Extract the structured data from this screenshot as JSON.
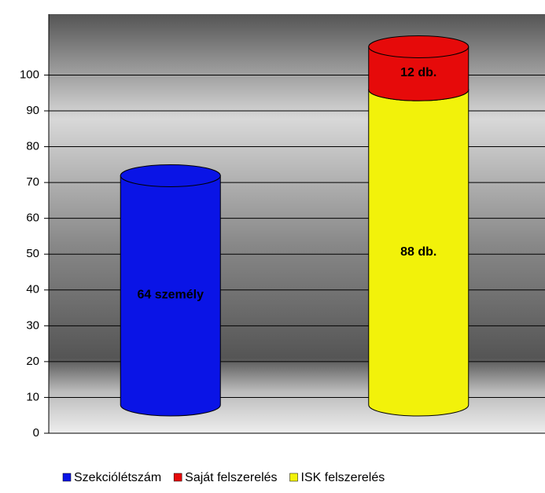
{
  "chart_data": {
    "type": "bar3d-stacked",
    "categories": [
      null,
      null
    ],
    "series": [
      {
        "name": "Szekciólétszám",
        "color": "#0a14e6",
        "values": [
          64,
          null
        ],
        "value_labels": [
          "64 személy",
          null
        ]
      },
      {
        "name": "Saját felszerelés",
        "color": "#e60a0a",
        "values": [
          null,
          12
        ],
        "value_labels": [
          null,
          "12 db."
        ]
      },
      {
        "name": "ISK felszerelés",
        "color": "#f2f20a",
        "values": [
          null,
          88
        ],
        "value_labels": [
          null,
          "88 db."
        ]
      }
    ],
    "ylim": [
      0,
      117
    ],
    "yticks": [
      0,
      10,
      20,
      30,
      40,
      50,
      60,
      70,
      80,
      90,
      100
    ],
    "grid": true,
    "legend": "bottom"
  }
}
